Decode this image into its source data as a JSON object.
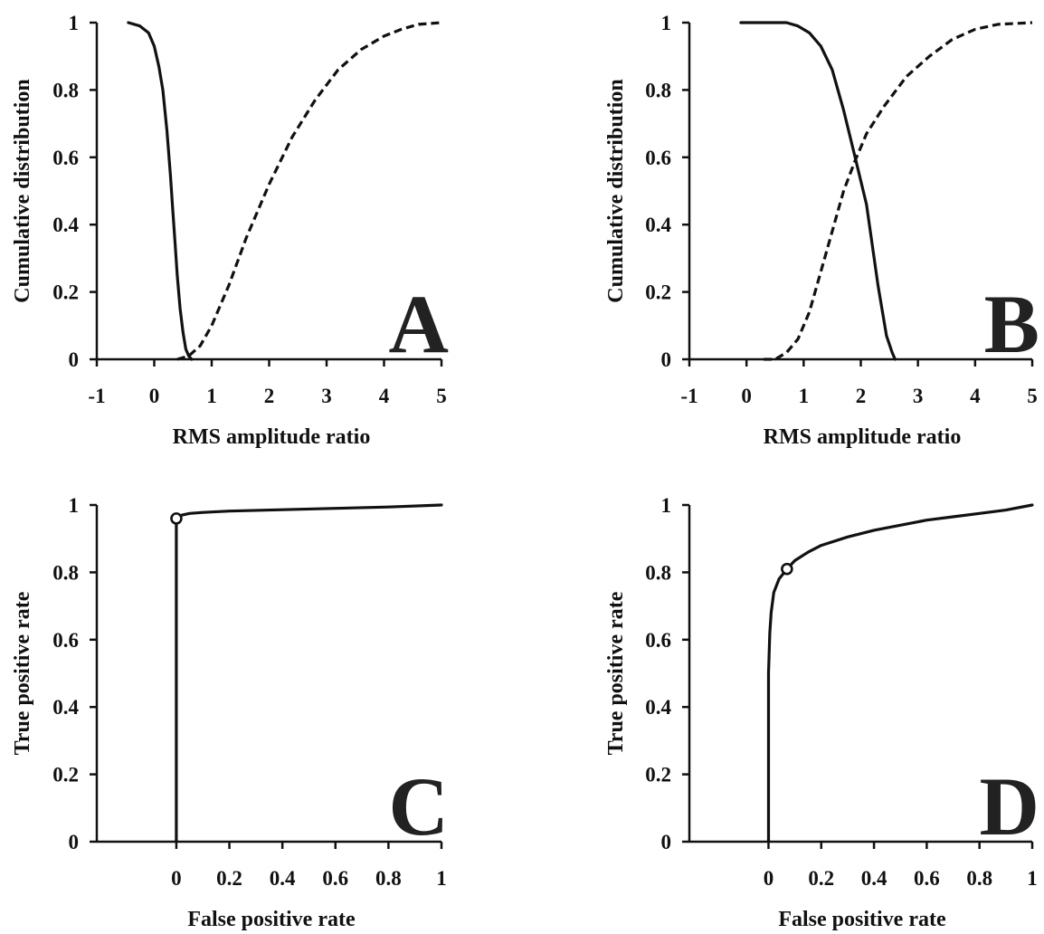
{
  "chart_data": [
    {
      "panel": "A",
      "type": "line",
      "xlabel": "RMS amplitude ratio",
      "ylabel": "Cumulative distribution",
      "xlim": [
        -1,
        5
      ],
      "ylim": [
        0,
        1
      ],
      "xticks": [
        "-1",
        "0",
        "1",
        "2",
        "3",
        "4",
        "5"
      ],
      "yticks": [
        "0",
        "0.2",
        "0.4",
        "0.6",
        "0.8",
        "1"
      ],
      "grid": false,
      "series": [
        {
          "style": "solid",
          "x": [
            -0.45,
            -0.25,
            -0.1,
            0.0,
            0.08,
            0.15,
            0.22,
            0.28,
            0.32,
            0.36,
            0.4,
            0.45,
            0.5,
            0.55,
            0.6,
            0.65
          ],
          "y": [
            1.0,
            0.99,
            0.97,
            0.93,
            0.87,
            0.8,
            0.68,
            0.55,
            0.45,
            0.35,
            0.25,
            0.15,
            0.08,
            0.03,
            0.01,
            0.0
          ]
        },
        {
          "style": "dashed",
          "x": [
            0.4,
            0.6,
            0.8,
            1.0,
            1.3,
            1.6,
            2.0,
            2.4,
            2.8,
            3.2,
            3.6,
            4.0,
            4.3,
            4.6,
            5.0
          ],
          "y": [
            0.0,
            0.01,
            0.04,
            0.1,
            0.22,
            0.36,
            0.52,
            0.66,
            0.77,
            0.86,
            0.92,
            0.96,
            0.98,
            0.995,
            1.0
          ]
        }
      ]
    },
    {
      "panel": "B",
      "type": "line",
      "xlabel": "RMS amplitude ratio",
      "ylabel": "Cumulative distribution",
      "xlim": [
        -1,
        5
      ],
      "ylim": [
        0,
        1
      ],
      "xticks": [
        "-1",
        "0",
        "1",
        "2",
        "3",
        "4",
        "5"
      ],
      "yticks": [
        "0",
        "0.2",
        "0.4",
        "0.6",
        "0.8",
        "1"
      ],
      "grid": false,
      "series": [
        {
          "style": "solid",
          "x": [
            -0.1,
            0.4,
            0.7,
            0.9,
            1.1,
            1.3,
            1.5,
            1.7,
            1.9,
            2.1,
            2.3,
            2.45,
            2.55,
            2.6
          ],
          "y": [
            1.0,
            1.0,
            1.0,
            0.99,
            0.97,
            0.93,
            0.86,
            0.74,
            0.6,
            0.46,
            0.22,
            0.07,
            0.02,
            0.0
          ]
        },
        {
          "style": "dashed",
          "x": [
            0.3,
            0.5,
            0.7,
            0.9,
            1.1,
            1.3,
            1.5,
            1.7,
            1.9,
            2.1,
            2.4,
            2.8,
            3.2,
            3.6,
            4.0,
            4.4,
            5.0
          ],
          "y": [
            0.0,
            0.0,
            0.02,
            0.06,
            0.14,
            0.26,
            0.38,
            0.5,
            0.59,
            0.67,
            0.75,
            0.84,
            0.9,
            0.95,
            0.98,
            0.995,
            1.0
          ]
        }
      ]
    },
    {
      "panel": "C",
      "type": "line",
      "xlabel": "False positive rate",
      "ylabel": "True positive rate",
      "xlim": [
        -0.3,
        1
      ],
      "ylim": [
        0,
        1
      ],
      "xticks": [
        "0",
        "0.2",
        "0.4",
        "0.6",
        "0.8",
        "1"
      ],
      "yticks": [
        "0",
        "0.2",
        "0.4",
        "0.6",
        "0.8",
        "1"
      ],
      "grid": false,
      "series": [
        {
          "style": "solid",
          "x": [
            0.0,
            0.0,
            0.0,
            0.02,
            0.05,
            0.1,
            0.2,
            0.4,
            0.6,
            0.8,
            1.0
          ],
          "y": [
            0.0,
            0.5,
            0.96,
            0.97,
            0.975,
            0.978,
            0.982,
            0.986,
            0.99,
            0.994,
            1.0
          ]
        }
      ],
      "points": [
        {
          "x": 0.0,
          "y": 0.96
        }
      ]
    },
    {
      "panel": "D",
      "type": "line",
      "xlabel": "False positive rate",
      "ylabel": "True positive rate",
      "xlim": [
        -0.3,
        1
      ],
      "ylim": [
        0,
        1
      ],
      "xticks": [
        "0",
        "0.2",
        "0.4",
        "0.6",
        "0.8",
        "1"
      ],
      "yticks": [
        "0",
        "0.2",
        "0.4",
        "0.6",
        "0.8",
        "1"
      ],
      "grid": false,
      "series": [
        {
          "style": "solid",
          "x": [
            0.0,
            0.0,
            0.005,
            0.01,
            0.02,
            0.04,
            0.07,
            0.1,
            0.15,
            0.2,
            0.3,
            0.4,
            0.5,
            0.6,
            0.7,
            0.8,
            0.9,
            1.0
          ],
          "y": [
            0.0,
            0.5,
            0.62,
            0.68,
            0.74,
            0.78,
            0.81,
            0.835,
            0.86,
            0.88,
            0.905,
            0.925,
            0.94,
            0.955,
            0.965,
            0.975,
            0.985,
            1.0
          ]
        }
      ],
      "points": [
        {
          "x": 0.07,
          "y": 0.81
        }
      ]
    }
  ]
}
